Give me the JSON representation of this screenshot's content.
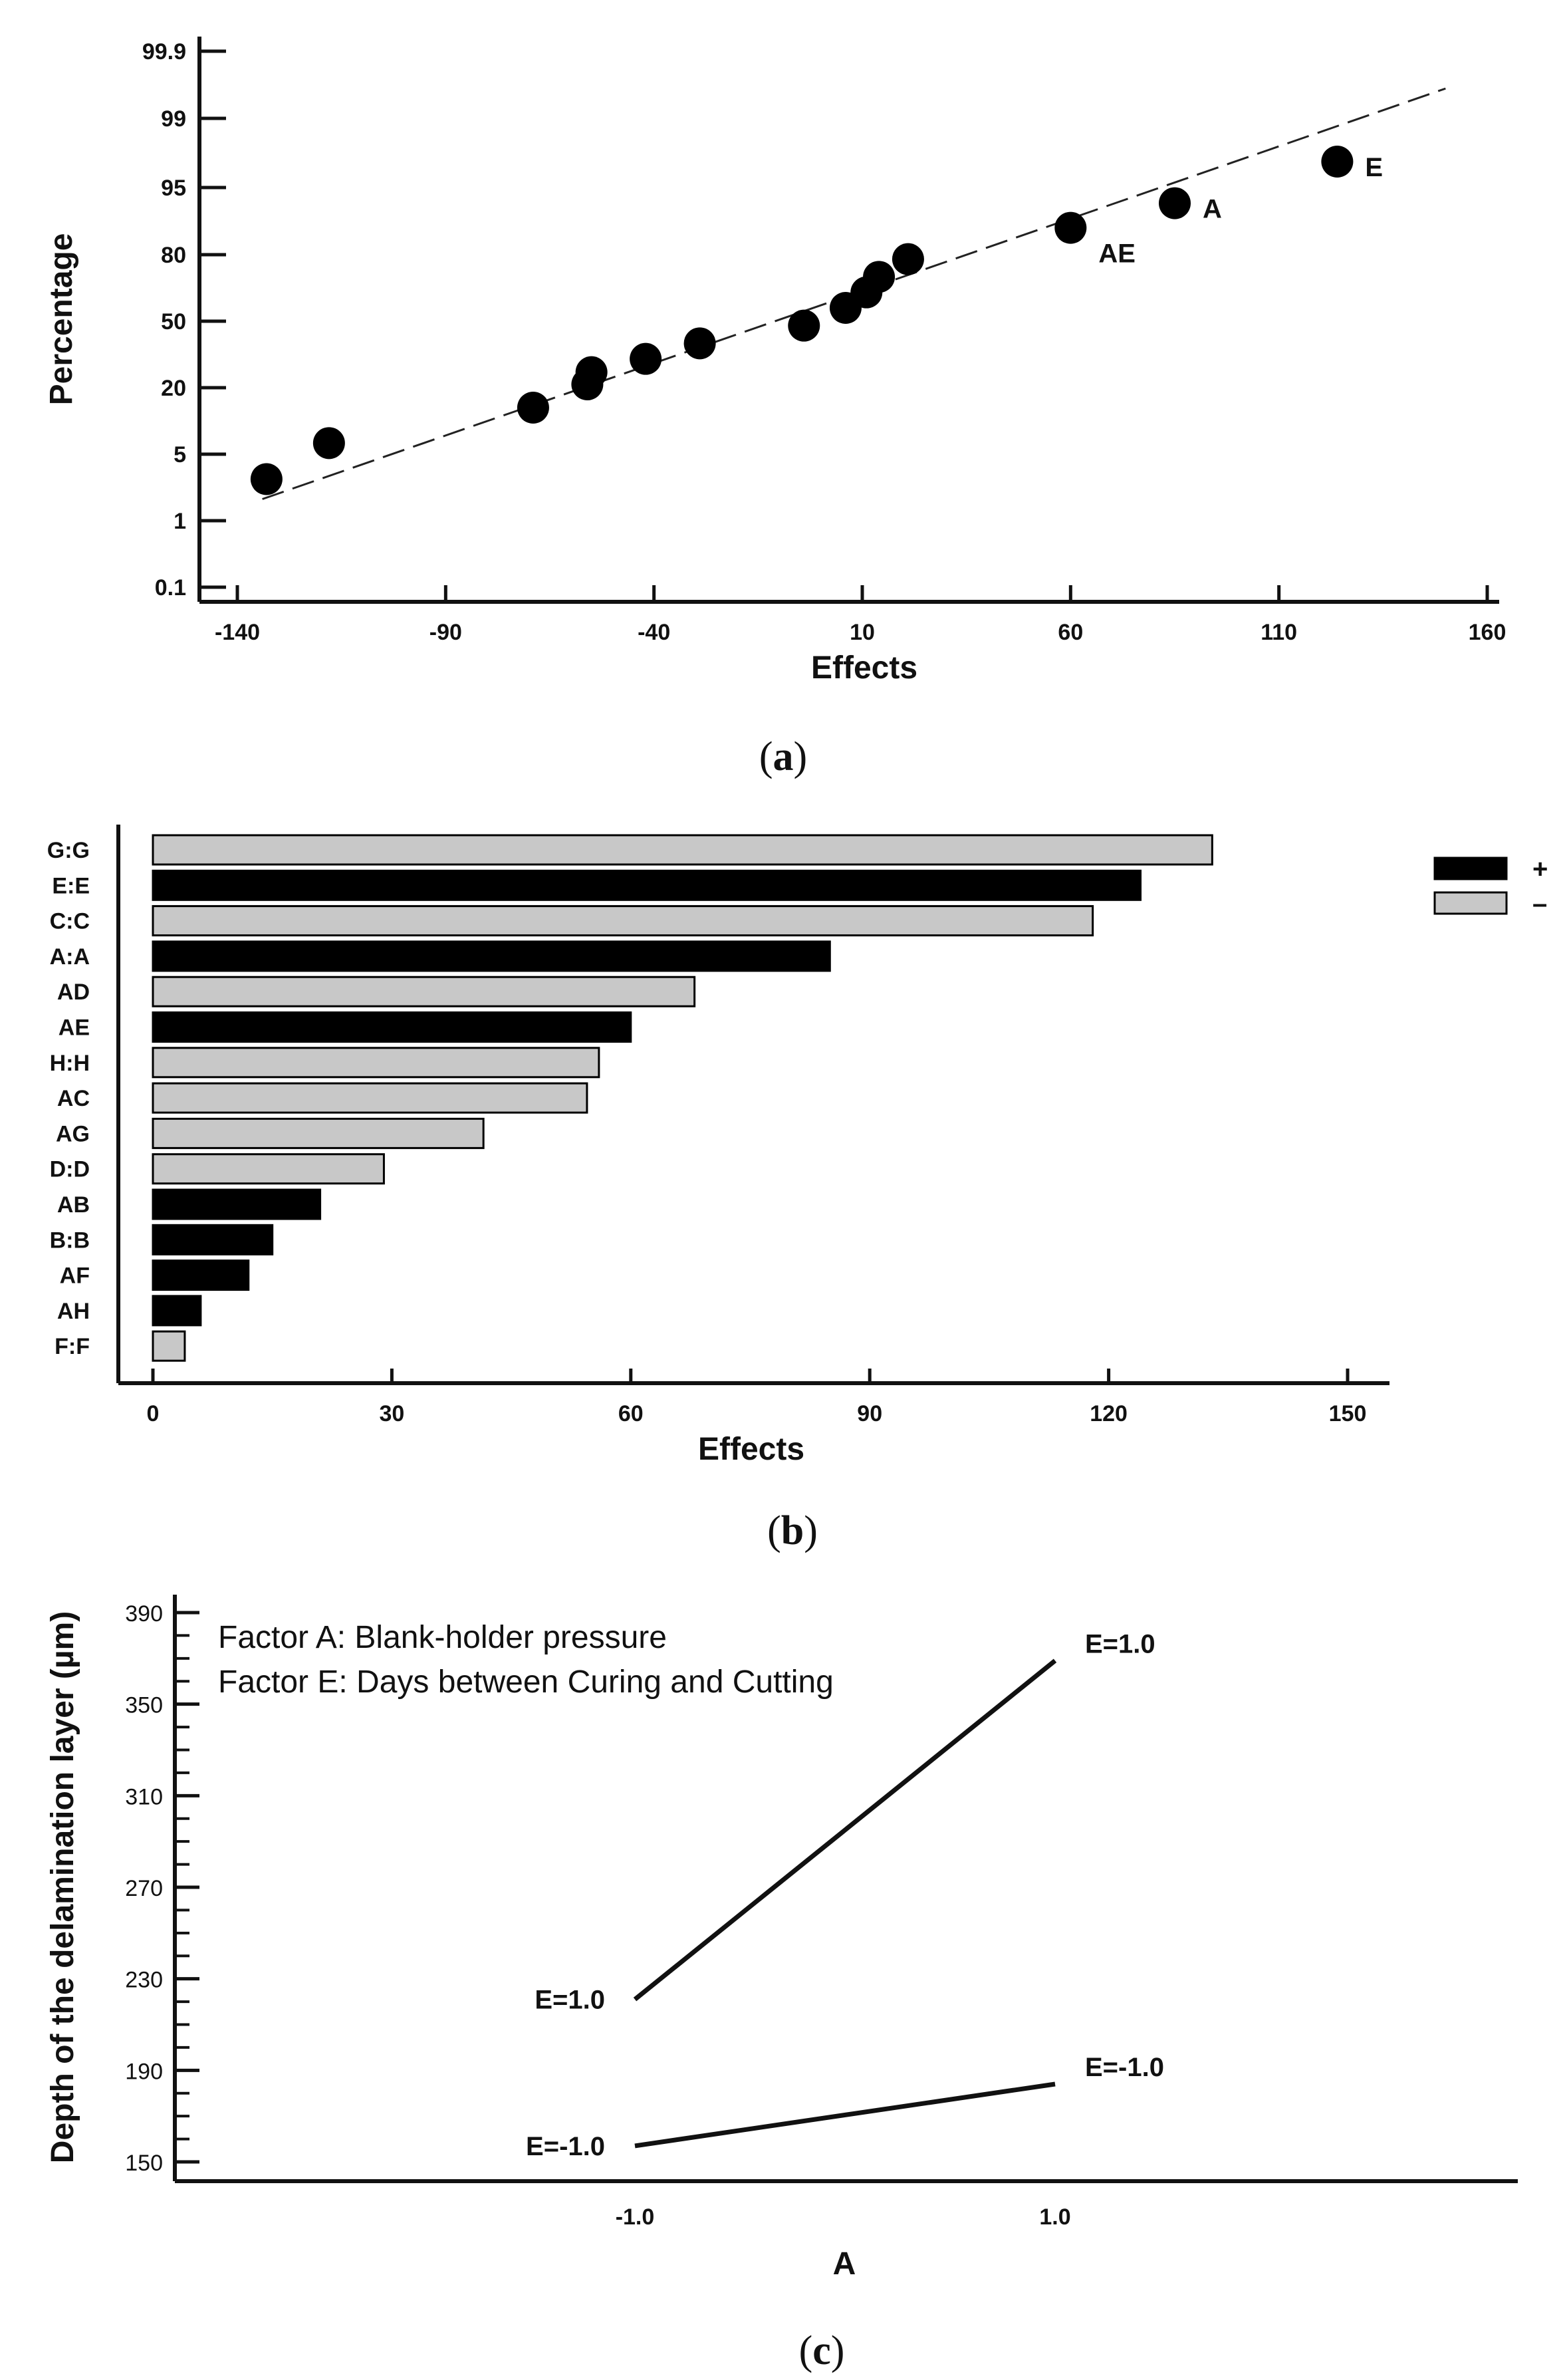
{
  "chart_data": [
    {
      "type": "scatter",
      "panel": "a",
      "xlabel": "Effects",
      "ylabel": "Percentage",
      "xticks": [
        "-140",
        "-90",
        "-40",
        "10",
        "60",
        "110",
        "160"
      ],
      "yticks": [
        "0.1",
        "1",
        "5",
        "20",
        "50",
        "80",
        "95",
        "99",
        "99.9"
      ],
      "xlim": [
        -140,
        160
      ],
      "points": [
        {
          "x": -133,
          "y": 3.5,
          "label": ""
        },
        {
          "x": -118,
          "y": 7.5,
          "label": ""
        },
        {
          "x": -69,
          "y": 15.5,
          "label": ""
        },
        {
          "x": -56,
          "y": 21.5,
          "label": ""
        },
        {
          "x": -55,
          "y": 27,
          "label": ""
        },
        {
          "x": -42,
          "y": 33,
          "label": ""
        },
        {
          "x": -29,
          "y": 40,
          "label": ""
        },
        {
          "x": -4,
          "y": 48,
          "label": ""
        },
        {
          "x": 6,
          "y": 56,
          "label": ""
        },
        {
          "x": 11,
          "y": 63,
          "label": ""
        },
        {
          "x": 14,
          "y": 70,
          "label": ""
        },
        {
          "x": 21,
          "y": 78,
          "label": ""
        },
        {
          "x": 60,
          "y": 86,
          "label": "AE"
        },
        {
          "x": 85,
          "y": 91.5,
          "label": "A"
        },
        {
          "x": 124,
          "y": 96.5,
          "label": "E"
        }
      ],
      "fit_line": {
        "x": [
          -134,
          150
        ],
        "y": [
          2.3,
          99.4
        ]
      }
    },
    {
      "type": "bar",
      "panel": "b",
      "orientation": "horizontal",
      "xlabel": "Effects",
      "xticks": [
        "0",
        "30",
        "60",
        "90",
        "120",
        "150"
      ],
      "xlim": [
        0,
        150
      ],
      "categories": [
        "G:G",
        "E:E",
        "C:C",
        "A:A",
        "AD",
        "AE",
        "H:H",
        "AC",
        "AG",
        "D:D",
        "AB",
        "B:B",
        "AF",
        "AH",
        "F:F"
      ],
      "values": [
        133,
        124,
        118,
        85,
        68,
        60,
        56,
        54.5,
        41.5,
        29,
        21,
        15,
        12,
        6,
        4
      ],
      "signs": [
        "-",
        "+",
        "-",
        "+",
        "-",
        "+",
        "-",
        "-",
        "-",
        "-",
        "+",
        "+",
        "+",
        "+",
        "-"
      ],
      "legend": [
        {
          "label": "+",
          "color": "#000000"
        },
        {
          "label": "–",
          "color": "#c8c8c8"
        }
      ]
    },
    {
      "type": "line",
      "panel": "c",
      "xlabel": "A",
      "ylabel": "Depth of the delamination layer (µm)",
      "xticks": [
        "-1.0",
        "1.0"
      ],
      "yticks": [
        "150",
        "190",
        "230",
        "270",
        "310",
        "350",
        "390"
      ],
      "ylim": [
        150,
        390
      ],
      "annotations": [
        "Factor A: Blank-holder pressure",
        "Factor E: Days between Curing and Cutting"
      ],
      "series": [
        {
          "name": "E=1.0",
          "x": [
            -1.0,
            1.0
          ],
          "y": [
            221,
            369
          ],
          "start_label": "E=1.0",
          "end_label": "E=1.0"
        },
        {
          "name": "E=-1.0",
          "x": [
            -1.0,
            1.0
          ],
          "y": [
            157,
            184
          ],
          "start_label": "E=-1.0",
          "end_label": "E=-1.0"
        }
      ]
    }
  ],
  "colors": {
    "positive": "#000000",
    "negative": "#c8c8c8",
    "ink": "#111111"
  },
  "panels": {
    "a": "a",
    "b": "b",
    "c": "c"
  }
}
